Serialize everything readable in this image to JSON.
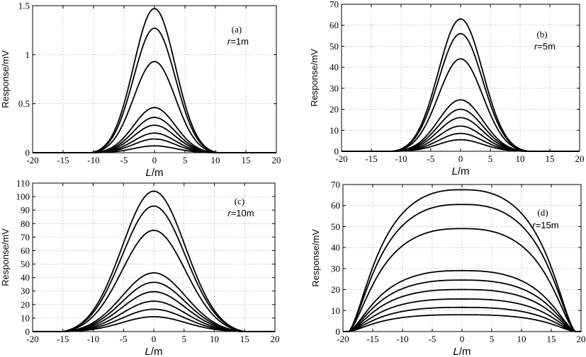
{
  "chart_data": [
    {
      "type": "line",
      "panel_label": "(a)",
      "r_symbol": "r",
      "r_value": "=1m",
      "ylabel": "Response/mV",
      "xlabel_symbol": "L",
      "xlabel_unit": "/m",
      "xlim": [
        -20,
        20
      ],
      "ylim": [
        0,
        1.5
      ],
      "xticks": [
        "-20",
        "-15",
        "-10",
        "-5",
        "0",
        "5",
        "10",
        "15",
        "20"
      ],
      "yticks": [
        "0",
        "0.5",
        "1",
        "1.5"
      ],
      "ytick_values": [
        0,
        0.5,
        1,
        1.5
      ],
      "grid": true,
      "shape": "gaussian",
      "width": 3.4,
      "support": 10.5,
      "series": [
        {
          "peak": 1.47
        },
        {
          "peak": 1.27
        },
        {
          "peak": 0.93
        },
        {
          "peak": 0.46
        },
        {
          "peak": 0.36
        },
        {
          "peak": 0.28
        },
        {
          "peak": 0.2
        },
        {
          "peak": 0.14
        },
        {
          "peak": 0.07
        }
      ]
    },
    {
      "type": "line",
      "panel_label": "(b)",
      "r_symbol": "r",
      "r_value": "=5m",
      "ylabel": "Response/mV",
      "xlabel_symbol": "L",
      "xlabel_unit": "/m",
      "xlim": [
        -20,
        20
      ],
      "ylim": [
        0,
        70
      ],
      "xticks": [
        "-20",
        "-15",
        "-10",
        "-5",
        "0",
        "5",
        "10",
        "15",
        "20"
      ],
      "yticks": [
        "0",
        "10",
        "20",
        "30",
        "40",
        "50",
        "60",
        "70"
      ],
      "ytick_values": [
        0,
        10,
        20,
        30,
        40,
        50,
        60,
        70
      ],
      "grid": true,
      "shape": "gaussian",
      "width": 3.7,
      "support": 11.5,
      "series": [
        {
          "peak": 63
        },
        {
          "peak": 56
        },
        {
          "peak": 44
        },
        {
          "peak": 24.5
        },
        {
          "peak": 20
        },
        {
          "peak": 16
        },
        {
          "peak": 12
        },
        {
          "peak": 8.5
        },
        {
          "peak": 5.5
        }
      ]
    },
    {
      "type": "line",
      "panel_label": "(c)",
      "r_symbol": "r",
      "r_value": "=10m",
      "ylabel": "Response/mV",
      "xlabel_symbol": "L",
      "xlabel_unit": "/m",
      "xlim": [
        -20,
        20
      ],
      "ylim": [
        0,
        110
      ],
      "xticks": [
        "-20",
        "-15",
        "-10",
        "-5",
        "0",
        "5",
        "10",
        "15",
        "20"
      ],
      "yticks": [
        "0",
        "10",
        "20",
        "30",
        "40",
        "50",
        "60",
        "70",
        "80",
        "90",
        "100",
        "110"
      ],
      "ytick_values": [
        0,
        10,
        20,
        30,
        40,
        50,
        60,
        70,
        80,
        90,
        100,
        110
      ],
      "grid": true,
      "shape": "gaussian",
      "width": 5.2,
      "support": 15,
      "series": [
        {
          "peak": 104
        },
        {
          "peak": 93
        },
        {
          "peak": 75
        },
        {
          "peak": 43.5
        },
        {
          "peak": 36.5
        },
        {
          "peak": 29.5
        },
        {
          "peak": 22.5
        },
        {
          "peak": 16.5
        },
        {
          "peak": 11
        }
      ]
    },
    {
      "type": "line",
      "panel_label": "(d)",
      "r_symbol": "r",
      "r_value": "=15m",
      "ylabel": "Response/mV",
      "xlabel_symbol": "L",
      "xlabel_unit": "/m",
      "xlim": [
        -20,
        20
      ],
      "ylim": [
        0,
        70
      ],
      "xticks": [
        "-20",
        "-15",
        "-10",
        "-5",
        "0",
        "5",
        "10",
        "15",
        "20"
      ],
      "yticks": [
        "0",
        "10",
        "20",
        "30",
        "40",
        "50",
        "60",
        "70"
      ],
      "ytick_values": [
        0,
        10,
        20,
        30,
        40,
        50,
        60,
        70
      ],
      "grid": true,
      "shape": "plateau",
      "width": 19,
      "support": 19.5,
      "series": [
        {
          "peak": 67.5
        },
        {
          "peak": 60.5
        },
        {
          "peak": 49
        },
        {
          "peak": 29
        },
        {
          "peak": 24.5
        },
        {
          "peak": 20
        },
        {
          "peak": 15.5
        },
        {
          "peak": 11.5
        },
        {
          "peak": 8
        }
      ]
    }
  ]
}
